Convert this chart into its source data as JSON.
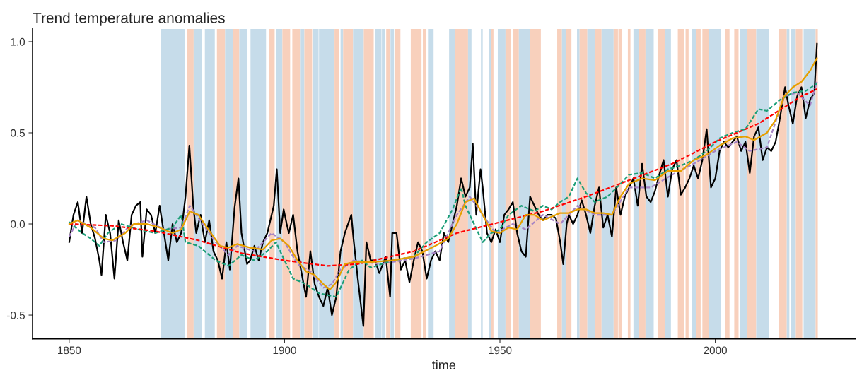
{
  "chart_data": {
    "type": "line",
    "title": "Trend temperature anomalies",
    "xlabel": "time",
    "xlim": [
      1841.5,
      2032.5
    ],
    "ylim": [
      -0.63,
      1.07
    ],
    "xticks": [
      1850,
      1900,
      1950,
      2000
    ],
    "yticks": [
      {
        "value": -0.5,
        "label": "-0.5"
      },
      {
        "value": 0,
        "label": "0.0"
      },
      {
        "value": 0.5,
        "label": "0.5"
      },
      {
        "value": 1,
        "label": "1.0"
      }
    ],
    "grid": false,
    "legend": false,
    "bands": [
      {
        "axis": "x",
        "from": 1871.3,
        "to": 1876.9,
        "color": "#c6dcea"
      },
      {
        "axis": "x",
        "from": 1877.4,
        "to": 1878.9,
        "color": "#f8d0bc"
      },
      {
        "axis": "x",
        "from": 1878.9,
        "to": 1880.8,
        "color": "#c6dcea"
      },
      {
        "axis": "x",
        "from": 1881.5,
        "to": 1883.8,
        "color": "#c6dcea"
      },
      {
        "axis": "x",
        "from": 1884.3,
        "to": 1886.2,
        "color": "#f8d0bc"
      },
      {
        "axis": "x",
        "from": 1886.2,
        "to": 1888.0,
        "color": "#c6dcea"
      },
      {
        "axis": "x",
        "from": 1888.0,
        "to": 1889.5,
        "color": "#f8d0bc"
      },
      {
        "axis": "x",
        "from": 1889.5,
        "to": 1891.3,
        "color": "#c6dcea"
      },
      {
        "axis": "x",
        "from": 1892.1,
        "to": 1895.7,
        "color": "#c6dcea"
      },
      {
        "axis": "x",
        "from": 1896.4,
        "to": 1897.7,
        "color": "#f8d0bc"
      },
      {
        "axis": "x",
        "from": 1898.0,
        "to": 1899.5,
        "color": "#c6dcea"
      },
      {
        "axis": "x",
        "from": 1899.5,
        "to": 1901.3,
        "color": "#f8d0bc"
      },
      {
        "axis": "x",
        "from": 1901.8,
        "to": 1903.6,
        "color": "#f8d0bc"
      },
      {
        "axis": "x",
        "from": 1903.6,
        "to": 1904.6,
        "color": "#c6dcea"
      },
      {
        "axis": "x",
        "from": 1904.6,
        "to": 1906.4,
        "color": "#f8d0bc"
      },
      {
        "axis": "x",
        "from": 1906.6,
        "to": 1907.9,
        "color": "#c6dcea"
      },
      {
        "axis": "x",
        "from": 1908.0,
        "to": 1911.6,
        "color": "#c6dcea"
      },
      {
        "axis": "x",
        "from": 1911.6,
        "to": 1912.6,
        "color": "#f8d0bc"
      },
      {
        "axis": "x",
        "from": 1913.0,
        "to": 1913.6,
        "color": "#c6dcea"
      },
      {
        "axis": "x",
        "from": 1913.6,
        "to": 1915.9,
        "color": "#f8d0bc"
      },
      {
        "axis": "x",
        "from": 1915.9,
        "to": 1918.4,
        "color": "#c6dcea"
      },
      {
        "axis": "x",
        "from": 1918.4,
        "to": 1920.7,
        "color": "#f8d0bc"
      },
      {
        "axis": "x",
        "from": 1921.1,
        "to": 1922.5,
        "color": "#c6dcea"
      },
      {
        "axis": "x",
        "from": 1922.6,
        "to": 1923.4,
        "color": "#c6dcea"
      },
      {
        "axis": "x",
        "from": 1923.6,
        "to": 1924.4,
        "color": "#f8d0bc"
      },
      {
        "axis": "x",
        "from": 1924.6,
        "to": 1925.4,
        "color": "#c6dcea"
      },
      {
        "axis": "x",
        "from": 1925.6,
        "to": 1926.9,
        "color": "#f8d0bc"
      },
      {
        "axis": "x",
        "from": 1929.3,
        "to": 1931.8,
        "color": "#f8d0bc"
      },
      {
        "axis": "x",
        "from": 1932.1,
        "to": 1932.8,
        "color": "#f8d0bc"
      },
      {
        "axis": "x",
        "from": 1933.3,
        "to": 1934.6,
        "color": "#c6dcea"
      },
      {
        "axis": "x",
        "from": 1938.2,
        "to": 1939.5,
        "color": "#c6dcea"
      },
      {
        "axis": "x",
        "from": 1939.5,
        "to": 1942.6,
        "color": "#f8d0bc"
      },
      {
        "axis": "x",
        "from": 1942.6,
        "to": 1943.4,
        "color": "#c6dcea"
      },
      {
        "axis": "x",
        "from": 1945.6,
        "to": 1946.0,
        "color": "#c6dcea"
      },
      {
        "axis": "x",
        "from": 1947.5,
        "to": 1948.0,
        "color": "#c6dcea"
      },
      {
        "axis": "x",
        "from": 1948.0,
        "to": 1948.5,
        "color": "#f8d0bc"
      },
      {
        "axis": "x",
        "from": 1949.5,
        "to": 1951.3,
        "color": "#c6dcea"
      },
      {
        "axis": "x",
        "from": 1951.3,
        "to": 1952.5,
        "color": "#f8d0bc"
      },
      {
        "axis": "x",
        "from": 1953.0,
        "to": 1954.4,
        "color": "#f8d0bc"
      },
      {
        "axis": "x",
        "from": 1954.4,
        "to": 1956.9,
        "color": "#c6dcea"
      },
      {
        "axis": "x",
        "from": 1957.0,
        "to": 1959.5,
        "color": "#f8d0bc"
      },
      {
        "axis": "x",
        "from": 1963.3,
        "to": 1964.4,
        "color": "#f8d0bc"
      },
      {
        "axis": "x",
        "from": 1964.4,
        "to": 1965.4,
        "color": "#c6dcea"
      },
      {
        "axis": "x",
        "from": 1965.4,
        "to": 1966.6,
        "color": "#f8d0bc"
      },
      {
        "axis": "x",
        "from": 1967.9,
        "to": 1968.5,
        "color": "#c6dcea"
      },
      {
        "axis": "x",
        "from": 1968.5,
        "to": 1970.3,
        "color": "#f8d0bc"
      },
      {
        "axis": "x",
        "from": 1970.3,
        "to": 1972.1,
        "color": "#c6dcea"
      },
      {
        "axis": "x",
        "from": 1972.1,
        "to": 1973.6,
        "color": "#f8d0bc"
      },
      {
        "axis": "x",
        "from": 1973.6,
        "to": 1976.4,
        "color": "#c6dcea"
      },
      {
        "axis": "x",
        "from": 1976.4,
        "to": 1977.4,
        "color": "#f8d0bc"
      },
      {
        "axis": "x",
        "from": 1977.5,
        "to": 1978.4,
        "color": "#f8d0bc"
      },
      {
        "axis": "x",
        "from": 1979.7,
        "to": 1980.3,
        "color": "#f8d0bc"
      },
      {
        "axis": "x",
        "from": 1981.0,
        "to": 1982.3,
        "color": "#c6dcea"
      },
      {
        "axis": "x",
        "from": 1982.3,
        "to": 1983.8,
        "color": "#f8d0bc"
      },
      {
        "axis": "x",
        "from": 1983.8,
        "to": 1985.7,
        "color": "#c6dcea"
      },
      {
        "axis": "x",
        "from": 1986.6,
        "to": 1988.4,
        "color": "#f8d0bc"
      },
      {
        "axis": "x",
        "from": 1988.4,
        "to": 1989.7,
        "color": "#c6dcea"
      },
      {
        "axis": "x",
        "from": 1991.3,
        "to": 1992.8,
        "color": "#f8d0bc"
      },
      {
        "axis": "x",
        "from": 1993.1,
        "to": 1993.8,
        "color": "#f8d0bc"
      },
      {
        "axis": "x",
        "from": 1994.6,
        "to": 1995.6,
        "color": "#c6dcea"
      },
      {
        "axis": "x",
        "from": 1995.6,
        "to": 1996.6,
        "color": "#f8d0bc"
      },
      {
        "axis": "x",
        "from": 1997.0,
        "to": 1998.5,
        "color": "#f8d0bc"
      },
      {
        "axis": "x",
        "from": 1998.5,
        "to": 2001.3,
        "color": "#c6dcea"
      },
      {
        "axis": "x",
        "from": 2002.3,
        "to": 2003.3,
        "color": "#f8d0bc"
      },
      {
        "axis": "x",
        "from": 2004.4,
        "to": 2005.4,
        "color": "#f8d0bc"
      },
      {
        "axis": "x",
        "from": 2005.7,
        "to": 2007.4,
        "color": "#c6dcea"
      },
      {
        "axis": "x",
        "from": 2007.4,
        "to": 2009.5,
        "color": "#f8d0bc"
      },
      {
        "axis": "x",
        "from": 2009.5,
        "to": 2012.5,
        "color": "#c6dcea"
      },
      {
        "axis": "x",
        "from": 2014.8,
        "to": 2016.6,
        "color": "#f8d0bc"
      },
      {
        "axis": "x",
        "from": 2016.6,
        "to": 2017.2,
        "color": "#c6dcea"
      },
      {
        "axis": "x",
        "from": 2017.5,
        "to": 2018.7,
        "color": "#c6dcea"
      },
      {
        "axis": "x",
        "from": 2018.7,
        "to": 2020.2,
        "color": "#f8d0bc"
      },
      {
        "axis": "x",
        "from": 2020.5,
        "to": 2023.3,
        "color": "#c6dcea"
      },
      {
        "axis": "x",
        "from": 2023.3,
        "to": 2023.8,
        "color": "#f8d0bc"
      }
    ],
    "series": [
      {
        "color": "#000000",
        "line_style": "solid",
        "x": [
          1850,
          1851,
          1852,
          1853,
          1854,
          1855,
          1856,
          1857,
          1857.5,
          1858.5,
          1859.5,
          1860.5,
          1861.5,
          1862.5,
          1863.5,
          1864.5,
          1865.5,
          1866.5,
          1867,
          1868,
          1869,
          1870,
          1871,
          1872,
          1873,
          1874,
          1875,
          1876,
          1877,
          1877.9,
          1878.8,
          1879.5,
          1880.5,
          1881.5,
          1882.5,
          1883.5,
          1884.5,
          1885.5,
          1886.5,
          1887.3,
          1888.4,
          1889.3,
          1890,
          1891.3,
          1892,
          1893,
          1894,
          1895,
          1896,
          1897.5,
          1898.2,
          1899,
          1899.8,
          1900.5,
          1901,
          1902,
          1903,
          1904.2,
          1905,
          1906,
          1907,
          1908,
          1909,
          1910,
          1911,
          1912,
          1913,
          1914,
          1915.5,
          1916,
          1917,
          1918.3,
          1919,
          1920,
          1921,
          1922,
          1923.5,
          1924.5,
          1925,
          1926,
          1927,
          1928,
          1929,
          1930,
          1931,
          1932,
          1933,
          1934,
          1935,
          1936,
          1937,
          1938,
          1939,
          1940,
          1941,
          1942,
          1943,
          1943.7,
          1944.5,
          1945.5,
          1946,
          1947,
          1948,
          1949,
          1950,
          1951,
          1952,
          1953,
          1954,
          1955,
          1956,
          1957,
          1958,
          1959,
          1960,
          1961,
          1962,
          1963,
          1964,
          1964.7,
          1965.5,
          1966,
          1967,
          1968,
          1969,
          1970,
          1971,
          1972,
          1973,
          1974,
          1975,
          1976,
          1977,
          1978,
          1979,
          1980,
          1981,
          1982,
          1983,
          1984,
          1985,
          1986,
          1987,
          1988,
          1989,
          1990,
          1991,
          1992,
          1993,
          1994,
          1995,
          1996,
          1997,
          1998,
          1999,
          2000,
          2001,
          2002,
          2003,
          2004,
          2005,
          2006,
          2007,
          2008,
          2009,
          2010,
          2011,
          2012,
          2013,
          2014,
          2015,
          2016.2,
          2017,
          2018,
          2019,
          2020,
          2021,
          2022,
          2023,
          2023.6
        ],
        "values": [
          -0.1,
          0.05,
          0.12,
          -0.05,
          0.15,
          0.0,
          -0.08,
          -0.2,
          -0.28,
          0.05,
          -0.05,
          -0.3,
          0.02,
          -0.1,
          -0.2,
          0.05,
          0.1,
          0.12,
          -0.18,
          0.08,
          0.05,
          -0.05,
          0.1,
          -0.05,
          -0.2,
          0.0,
          -0.1,
          -0.05,
          0.15,
          0.43,
          0.1,
          -0.05,
          0.05,
          -0.1,
          0.02,
          -0.15,
          -0.2,
          -0.3,
          -0.1,
          -0.25,
          0.09,
          0.25,
          -0.05,
          -0.22,
          -0.2,
          -0.12,
          -0.2,
          -0.1,
          -0.05,
          0.1,
          0.3,
          -0.05,
          0.08,
          0.0,
          -0.05,
          0.05,
          -0.15,
          -0.3,
          -0.4,
          -0.15,
          -0.33,
          -0.4,
          -0.45,
          -0.35,
          -0.5,
          -0.4,
          -0.15,
          -0.05,
          0.05,
          -0.08,
          -0.3,
          -0.56,
          -0.1,
          -0.2,
          -0.2,
          -0.27,
          -0.18,
          -0.4,
          -0.05,
          -0.05,
          -0.25,
          -0.2,
          -0.32,
          -0.2,
          -0.1,
          -0.15,
          -0.3,
          -0.2,
          -0.15,
          -0.2,
          -0.05,
          -0.1,
          0.0,
          0.1,
          0.25,
          0.15,
          0.2,
          0.44,
          0.05,
          0.3,
          0.2,
          -0.05,
          -0.1,
          -0.03,
          -0.1,
          0.05,
          0.08,
          0.12,
          -0.05,
          -0.15,
          -0.18,
          0.15,
          0.1,
          0.05,
          0.02,
          0.05,
          0.05,
          0.03,
          -0.1,
          -0.22,
          0.0,
          0.05,
          0.0,
          0.05,
          0.13,
          0.05,
          -0.05,
          0.1,
          0.2,
          -0.02,
          0.05,
          -0.07,
          0.2,
          0.05,
          0.15,
          0.2,
          0.25,
          0.1,
          0.33,
          0.15,
          0.12,
          0.18,
          0.27,
          0.35,
          0.15,
          0.3,
          0.35,
          0.16,
          0.2,
          0.25,
          0.32,
          0.25,
          0.35,
          0.52,
          0.2,
          0.25,
          0.4,
          0.45,
          0.42,
          0.45,
          0.48,
          0.4,
          0.45,
          0.28,
          0.48,
          0.53,
          0.35,
          0.42,
          0.4,
          0.45,
          0.58,
          0.75,
          0.65,
          0.55,
          0.7,
          0.75,
          0.58,
          0.68,
          0.72,
          0.99
        ]
      },
      {
        "color": "#a583c4",
        "line_style": "dashed",
        "x": [
          1850,
          1852,
          1856,
          1858,
          1861,
          1864,
          1868,
          1872,
          1876,
          1878,
          1881,
          1884,
          1887,
          1889,
          1893,
          1897,
          1900,
          1903,
          1906,
          1909,
          1911,
          1913,
          1916,
          1922,
          1930,
          1936,
          1940,
          1943,
          1946,
          1949,
          1953,
          1956,
          1960,
          1964,
          1968,
          1972,
          1976,
          1980,
          1985,
          1990,
          1995,
          2000,
          2005,
          2008,
          2012,
          2016,
          2019,
          2022,
          2023.6
        ],
        "values": [
          -0.07,
          0.02,
          -0.02,
          -0.1,
          -0.09,
          -0.01,
          0.02,
          -0.03,
          -0.02,
          0.1,
          0.0,
          -0.1,
          -0.17,
          -0.12,
          -0.15,
          -0.05,
          -0.1,
          -0.22,
          -0.26,
          -0.35,
          -0.33,
          -0.25,
          -0.2,
          -0.22,
          -0.19,
          -0.15,
          0.05,
          0.15,
          0.05,
          -0.05,
          0.0,
          -0.03,
          0.05,
          0.0,
          0.1,
          0.05,
          0.05,
          0.2,
          0.2,
          0.27,
          0.33,
          0.4,
          0.45,
          0.4,
          0.42,
          0.7,
          0.72,
          0.65,
          0.78
        ]
      },
      {
        "color": "#1b9e77",
        "line_style": "dashed",
        "x": [
          1850,
          1853,
          1855,
          1857,
          1859,
          1862,
          1866,
          1870,
          1874,
          1876,
          1877,
          1880,
          1884,
          1887,
          1890,
          1893,
          1896,
          1898,
          1900,
          1902,
          1905,
          1908,
          1912,
          1915,
          1918,
          1920,
          1925,
          1930,
          1933,
          1936,
          1939,
          1941,
          1942,
          1944,
          1946,
          1948,
          1950,
          1952,
          1955,
          1958,
          1960,
          1962,
          1964,
          1966,
          1968,
          1970,
          1972,
          1975,
          1978,
          1980,
          1983,
          1986,
          1989,
          1992,
          1995,
          1998,
          2001,
          2004,
          2007,
          2010,
          2012,
          2015,
          2018,
          2021,
          2023.6
        ],
        "values": [
          0.01,
          -0.05,
          -0.08,
          -0.12,
          -0.05,
          0.0,
          -0.03,
          -0.05,
          -0.02,
          0.05,
          -0.1,
          -0.12,
          -0.2,
          -0.23,
          -0.17,
          -0.2,
          -0.15,
          -0.1,
          -0.2,
          -0.3,
          -0.33,
          -0.38,
          -0.4,
          -0.25,
          -0.2,
          -0.24,
          -0.2,
          -0.18,
          -0.1,
          -0.05,
          0.08,
          0.2,
          0.1,
          0.0,
          -0.1,
          -0.05,
          -0.03,
          0.05,
          0.1,
          0.07,
          0.1,
          0.08,
          0.12,
          0.15,
          0.25,
          0.17,
          0.12,
          0.15,
          0.22,
          0.27,
          0.28,
          0.25,
          0.3,
          0.32,
          0.35,
          0.4,
          0.47,
          0.5,
          0.52,
          0.63,
          0.62,
          0.68,
          0.72,
          0.73,
          0.77
        ]
      },
      {
        "color": "#ff0000",
        "line_style": "dashed",
        "x": [
          1850,
          1860,
          1870,
          1880,
          1890,
          1900,
          1910,
          1917,
          1930,
          1940,
          1950,
          1960,
          1970,
          1980,
          1990,
          2000,
          2010,
          2020,
          2023.6
        ],
        "values": [
          0.0,
          -0.01,
          -0.04,
          -0.09,
          -0.16,
          -0.2,
          -0.23,
          -0.22,
          -0.15,
          -0.05,
          0.01,
          0.07,
          0.15,
          0.24,
          0.33,
          0.45,
          0.55,
          0.7,
          0.74
        ]
      },
      {
        "color": "#e69f00",
        "line_style": "solid",
        "x": [
          1850,
          1852,
          1855,
          1858,
          1860,
          1863,
          1865,
          1868,
          1871,
          1874,
          1876,
          1878,
          1880,
          1882,
          1885,
          1887,
          1889,
          1892,
          1895,
          1897,
          1899,
          1901,
          1903,
          1905,
          1907,
          1909,
          1910.5,
          1912,
          1914,
          1916,
          1920,
          1925,
          1930,
          1935,
          1938,
          1940,
          1942,
          1944,
          1946,
          1948,
          1950,
          1952,
          1954,
          1956,
          1958,
          1960,
          1962,
          1964,
          1966,
          1968,
          1970,
          1972,
          1974,
          1976,
          1978,
          1980,
          1983,
          1986,
          1989,
          1992,
          1995,
          1998,
          2001,
          2004,
          2007,
          2009,
          2012,
          2014,
          2016,
          2018,
          2020,
          2022,
          2023.6
        ],
        "values": [
          0.0,
          0.02,
          -0.02,
          -0.08,
          -0.09,
          -0.05,
          0.0,
          0.0,
          -0.02,
          -0.05,
          -0.03,
          0.07,
          0.05,
          -0.02,
          -0.12,
          -0.13,
          -0.11,
          -0.13,
          -0.14,
          -0.09,
          -0.08,
          -0.12,
          -0.2,
          -0.26,
          -0.28,
          -0.33,
          -0.36,
          -0.32,
          -0.22,
          -0.21,
          -0.21,
          -0.2,
          -0.18,
          -0.12,
          -0.08,
          0.0,
          0.12,
          0.14,
          0.05,
          -0.04,
          -0.05,
          -0.02,
          -0.03,
          0.05,
          0.05,
          0.02,
          0.04,
          0.06,
          0.06,
          0.08,
          0.08,
          0.06,
          0.06,
          0.05,
          0.15,
          0.22,
          0.25,
          0.24,
          0.29,
          0.29,
          0.35,
          0.38,
          0.43,
          0.47,
          0.48,
          0.46,
          0.5,
          0.57,
          0.7,
          0.75,
          0.78,
          0.84,
          0.91
        ]
      }
    ]
  }
}
